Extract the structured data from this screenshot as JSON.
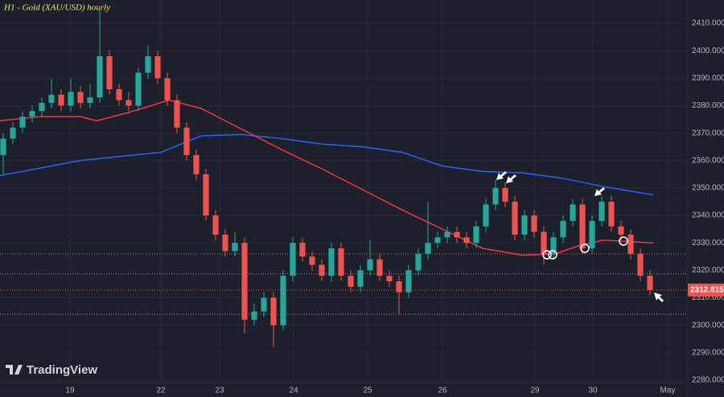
{
  "chart_data": {
    "type": "candlestick",
    "title": "H1 - Gold (XAU/USD) hourly",
    "brand": "TradingView",
    "up_color": "#26a69a",
    "down_color": "#ef5350",
    "grid": true,
    "xlim": [
      0,
      213.75
    ],
    "ylim": [
      2279.1,
      2418.5
    ],
    "xticks": [
      {
        "value": 21.75,
        "label": "19"
      },
      {
        "value": 50,
        "label": "22"
      },
      {
        "value": 68.25,
        "label": "23"
      },
      {
        "value": 91.25,
        "label": "24"
      },
      {
        "value": 114.25,
        "label": "25"
      },
      {
        "value": 137.5,
        "label": "26"
      },
      {
        "value": 166.25,
        "label": "29"
      },
      {
        "value": 184.25,
        "label": "30"
      },
      {
        "value": 207.5,
        "label": "May"
      }
    ],
    "yticks": [
      {
        "value": 2280,
        "label": "2280.000"
      },
      {
        "value": 2290,
        "label": "2290.000"
      },
      {
        "value": 2300,
        "label": "2300.000"
      },
      {
        "value": 2310,
        "label": "2310.000"
      },
      {
        "value": 2320,
        "label": "2320.000"
      },
      {
        "value": 2330,
        "label": "2330.000"
      },
      {
        "value": 2340,
        "label": "2340.000"
      },
      {
        "value": 2350,
        "label": "2350.000"
      },
      {
        "value": 2360,
        "label": "2360.000"
      },
      {
        "value": 2370,
        "label": "2370.000"
      },
      {
        "value": 2380,
        "label": "2380.000"
      },
      {
        "value": 2390,
        "label": "2390.000"
      },
      {
        "value": 2400,
        "label": "2400.000"
      },
      {
        "value": 2410,
        "label": "2410.000"
      }
    ],
    "x": [
      1,
      4,
      7,
      10,
      13,
      16,
      19,
      22,
      25,
      28,
      31,
      34,
      37,
      40,
      43,
      46,
      49,
      52,
      55,
      58,
      61,
      64,
      67,
      70,
      73,
      76,
      79,
      82,
      85,
      88,
      91,
      94,
      97,
      100,
      103,
      106,
      109,
      112,
      115,
      118,
      121,
      124,
      127,
      130,
      133,
      136,
      139,
      142,
      145,
      148,
      151,
      154,
      157,
      160,
      163,
      166,
      169,
      172,
      175,
      178,
      181,
      184,
      187,
      190,
      193,
      196,
      199,
      202
    ],
    "open": [
      2362,
      2368,
      2372,
      2376,
      2378,
      2381,
      2384,
      2380,
      2385,
      2381,
      2383,
      2398,
      2386,
      2382,
      2380,
      2392,
      2398,
      2390,
      2382,
      2372,
      2362,
      2355,
      2340,
      2333,
      2327,
      2330,
      2302,
      2305,
      2310,
      2300,
      2318,
      2330,
      2325,
      2322,
      2318,
      2328,
      2318,
      2314,
      2320,
      2324,
      2318,
      2316,
      2312,
      2320,
      2326,
      2330,
      2332,
      2334,
      2332,
      2330,
      2336,
      2344,
      2350,
      2345,
      2333,
      2340,
      2334,
      2326,
      2332,
      2338,
      2344,
      2328,
      2338,
      2345,
      2336,
      2333,
      2326,
      2318
    ],
    "high": [
      2370,
      2374,
      2378,
      2380,
      2383,
      2390,
      2386,
      2390,
      2387,
      2388,
      2415,
      2400,
      2388,
      2385,
      2394,
      2402,
      2400,
      2392,
      2384,
      2374,
      2364,
      2357,
      2342,
      2335,
      2334,
      2332,
      2308,
      2312,
      2312,
      2320,
      2332,
      2332,
      2327,
      2324,
      2330,
      2330,
      2320,
      2322,
      2331,
      2326,
      2320,
      2318,
      2322,
      2328,
      2345,
      2334,
      2336,
      2336,
      2334,
      2338,
      2346,
      2353,
      2352,
      2347,
      2342,
      2342,
      2336,
      2334,
      2340,
      2346,
      2346,
      2340,
      2347,
      2347,
      2338,
      2335,
      2328,
      2320
    ],
    "low": [
      2355,
      2366,
      2370,
      2374,
      2376,
      2379,
      2378,
      2378,
      2379,
      2379,
      2381,
      2384,
      2380,
      2378,
      2378,
      2390,
      2388,
      2380,
      2370,
      2360,
      2353,
      2338,
      2331,
      2325,
      2325,
      2297,
      2300,
      2303,
      2292,
      2298,
      2316,
      2323,
      2320,
      2316,
      2316,
      2316,
      2312,
      2312,
      2318,
      2316,
      2314,
      2304,
      2310,
      2318,
      2324,
      2328,
      2330,
      2330,
      2328,
      2328,
      2334,
      2342,
      2343,
      2331,
      2331,
      2332,
      2322,
      2324,
      2330,
      2336,
      2326,
      2326,
      2336,
      2334,
      2331,
      2324,
      2316,
      2311
    ],
    "close": [
      2368,
      2372,
      2376,
      2378,
      2381,
      2384,
      2380,
      2385,
      2381,
      2383,
      2398,
      2386,
      2382,
      2380,
      2392,
      2398,
      2390,
      2382,
      2372,
      2362,
      2355,
      2340,
      2333,
      2327,
      2330,
      2302,
      2305,
      2310,
      2300,
      2318,
      2330,
      2325,
      2322,
      2318,
      2328,
      2318,
      2314,
      2320,
      2324,
      2318,
      2316,
      2312,
      2320,
      2326,
      2330,
      2332,
      2334,
      2332,
      2330,
      2336,
      2344,
      2350,
      2345,
      2333,
      2340,
      2334,
      2326,
      2332,
      2338,
      2344,
      2328,
      2338,
      2345,
      2336,
      2333,
      2326,
      2318,
      2312.815
    ],
    "lines": [
      {
        "color": "#2962ff",
        "x": [
          0,
          25,
          50,
          62.5,
          75,
          87.5,
          100,
          112.5,
          125,
          137.5,
          150,
          162.5,
          175,
          187.5,
          203
        ],
        "values": [
          2354.5,
          2360,
          2363,
          2369,
          2369.5,
          2368,
          2366,
          2365,
          2363,
          2358,
          2356,
          2355.5,
          2353.5,
          2350.5,
          2347.5
        ]
      },
      {
        "color": "#f23645",
        "x": [
          0,
          12.5,
          25,
          30,
          40,
          52.5,
          62.5,
          75,
          87.5,
          100,
          112.5,
          125,
          137.5,
          150,
          162.5,
          172.5,
          180,
          187.5,
          203
        ],
        "values": [
          2374.5,
          2376,
          2376,
          2374.5,
          2377.5,
          2382,
          2379,
          2371.5,
          2364,
          2357,
          2349.5,
          2342,
          2335,
          2328,
          2325.5,
          2326,
          2329,
          2331,
          2330
        ]
      }
    ],
    "hlines": [
      {
        "value": 2326,
        "color": "#ef5350"
      },
      {
        "value": 2318.7,
        "color": "#9598a1"
      },
      {
        "value": 2304,
        "color": "#9598a1"
      }
    ],
    "last_price": 2312.815
  }
}
